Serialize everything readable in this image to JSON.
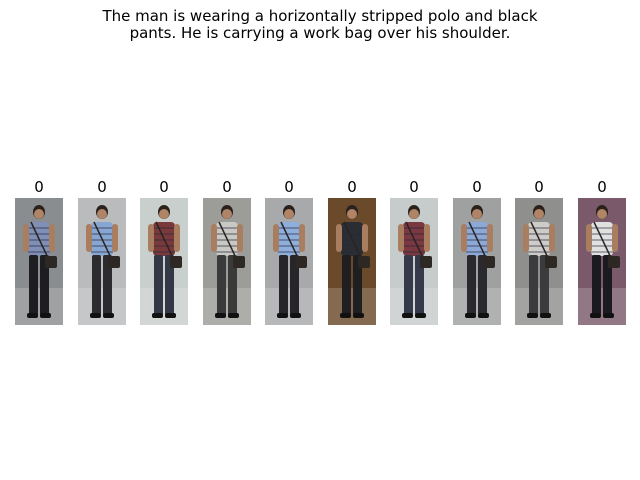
{
  "caption": {
    "line1": "The man is wearing a horizontally stripped polo and black",
    "line2": "pants. He is carrying a work bag over his shoulder."
  },
  "gallery": [
    {
      "label": "0",
      "photo": "person-striped-polo-front-view",
      "shirt": "#7f8fb6",
      "pants": "#1e1e22",
      "bg": "#8a8d8f"
    },
    {
      "label": "0",
      "photo": "person-blue-striped-shirt-back-view",
      "shirt": "#88a6d2",
      "pants": "#2b2b30",
      "bg": "#b9bbbd"
    },
    {
      "label": "0",
      "photo": "person-red-striped-shirt-with-bag",
      "shirt": "#7a3a3c",
      "pants": "#323846",
      "bg": "#c9cfcd"
    },
    {
      "label": "0",
      "photo": "person-grey-shirt-shoulder-bag-back",
      "shirt": "#c8c8c4",
      "pants": "#3a3a3a",
      "bg": "#9c9c98"
    },
    {
      "label": "0",
      "photo": "person-blue-striped-shirt-walking",
      "shirt": "#8eaedb",
      "pants": "#26262a",
      "bg": "#a7a9aa"
    },
    {
      "label": "0",
      "photo": "person-dark-clothes-mall-interior",
      "shirt": "#2a2e32",
      "pants": "#1f1f22",
      "bg": "#6b4a2c"
    },
    {
      "label": "0",
      "photo": "person-red-striped-shirt-bending",
      "shirt": "#7a3840",
      "pants": "#343a4a",
      "bg": "#c6cbcc"
    },
    {
      "label": "0",
      "photo": "person-blue-shirt-back-view-street",
      "shirt": "#8ba8d6",
      "pants": "#2a2a2e",
      "bg": "#9fa0a0"
    },
    {
      "label": "0",
      "photo": "person-grey-shirt-with-bag-back",
      "shirt": "#cdccc8",
      "pants": "#3b3b3d",
      "bg": "#8f908d"
    },
    {
      "label": "0",
      "photo": "person-black-white-striped-shirt-event",
      "shirt": "#e0e0e0",
      "pants": "#1a1a20",
      "bg": "#7a5a6a"
    }
  ]
}
